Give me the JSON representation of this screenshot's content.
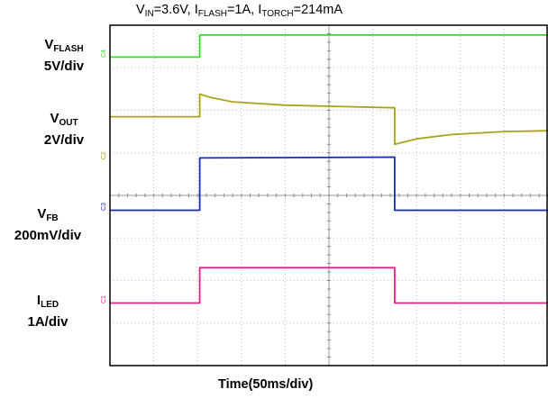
{
  "title": {
    "main": "V",
    "sub1": "IN",
    "p1": "=3.6V, I",
    "sub2": "FLASH",
    "p2": "=1A, I",
    "sub3": "TORCH",
    "p3": "=214mA"
  },
  "labels": {
    "vflash": {
      "main": "V",
      "sub": "FLASH",
      "scale": "5V/div"
    },
    "vout": {
      "main": "V",
      "sub": "OUT",
      "scale": "2V/div"
    },
    "vfb": {
      "main": "V",
      "sub": "FB",
      "scale": "200mV/div"
    },
    "iled": {
      "main": "I",
      "sub": "LED",
      "scale": "1A/div"
    }
  },
  "xlabel": "Time(50ms/div)",
  "colors": {
    "ch1": "#33dd22",
    "ch2": "#aaa21a",
    "ch3": "#1a2ab8",
    "ch4": "#e0208a",
    "grid": "#bdbdbd",
    "frame": "#000000"
  },
  "chart_data": {
    "type": "line",
    "xlabel": "Time(50ms/div)",
    "grid": true,
    "x_divisions": 10,
    "y_divisions": 8,
    "xlim_div": [
      0,
      10
    ],
    "ylim_div": [
      0,
      8
    ],
    "series": [
      {
        "name": "VFLASH",
        "marker": "C4",
        "color": "#33dd22",
        "points_div": [
          [
            0,
            7.25
          ],
          [
            2.05,
            7.25
          ],
          [
            2.05,
            7.77
          ],
          [
            10,
            7.77
          ]
        ]
      },
      {
        "name": "VOUT",
        "marker": "C2",
        "color": "#aaa21a",
        "points_div": [
          [
            0,
            5.85
          ],
          [
            2.05,
            5.85
          ],
          [
            2.05,
            6.38
          ],
          [
            2.3,
            6.3
          ],
          [
            2.8,
            6.2
          ],
          [
            4,
            6.12
          ],
          [
            6.5,
            6.06
          ],
          [
            6.5,
            5.2
          ],
          [
            7,
            5.33
          ],
          [
            7.8,
            5.43
          ],
          [
            9,
            5.5
          ],
          [
            10,
            5.52
          ]
        ]
      },
      {
        "name": "VFB",
        "marker": "C3",
        "color": "#1a2ab8",
        "points_div": [
          [
            0,
            3.65
          ],
          [
            2.05,
            3.65
          ],
          [
            2.05,
            4.88
          ],
          [
            6.5,
            4.9
          ],
          [
            6.5,
            3.65
          ],
          [
            10,
            3.65
          ]
        ]
      },
      {
        "name": "ILED",
        "marker": "C1",
        "color": "#e0208a",
        "points_div": [
          [
            0,
            1.47
          ],
          [
            2.05,
            1.47
          ],
          [
            2.05,
            2.3
          ],
          [
            6.5,
            2.3
          ],
          [
            6.5,
            1.47
          ],
          [
            10,
            1.47
          ]
        ]
      }
    ],
    "markers": [
      {
        "text": "C4"
      },
      {
        "text": "C2"
      },
      {
        "text": "C3"
      },
      {
        "text": "C1"
      }
    ]
  }
}
